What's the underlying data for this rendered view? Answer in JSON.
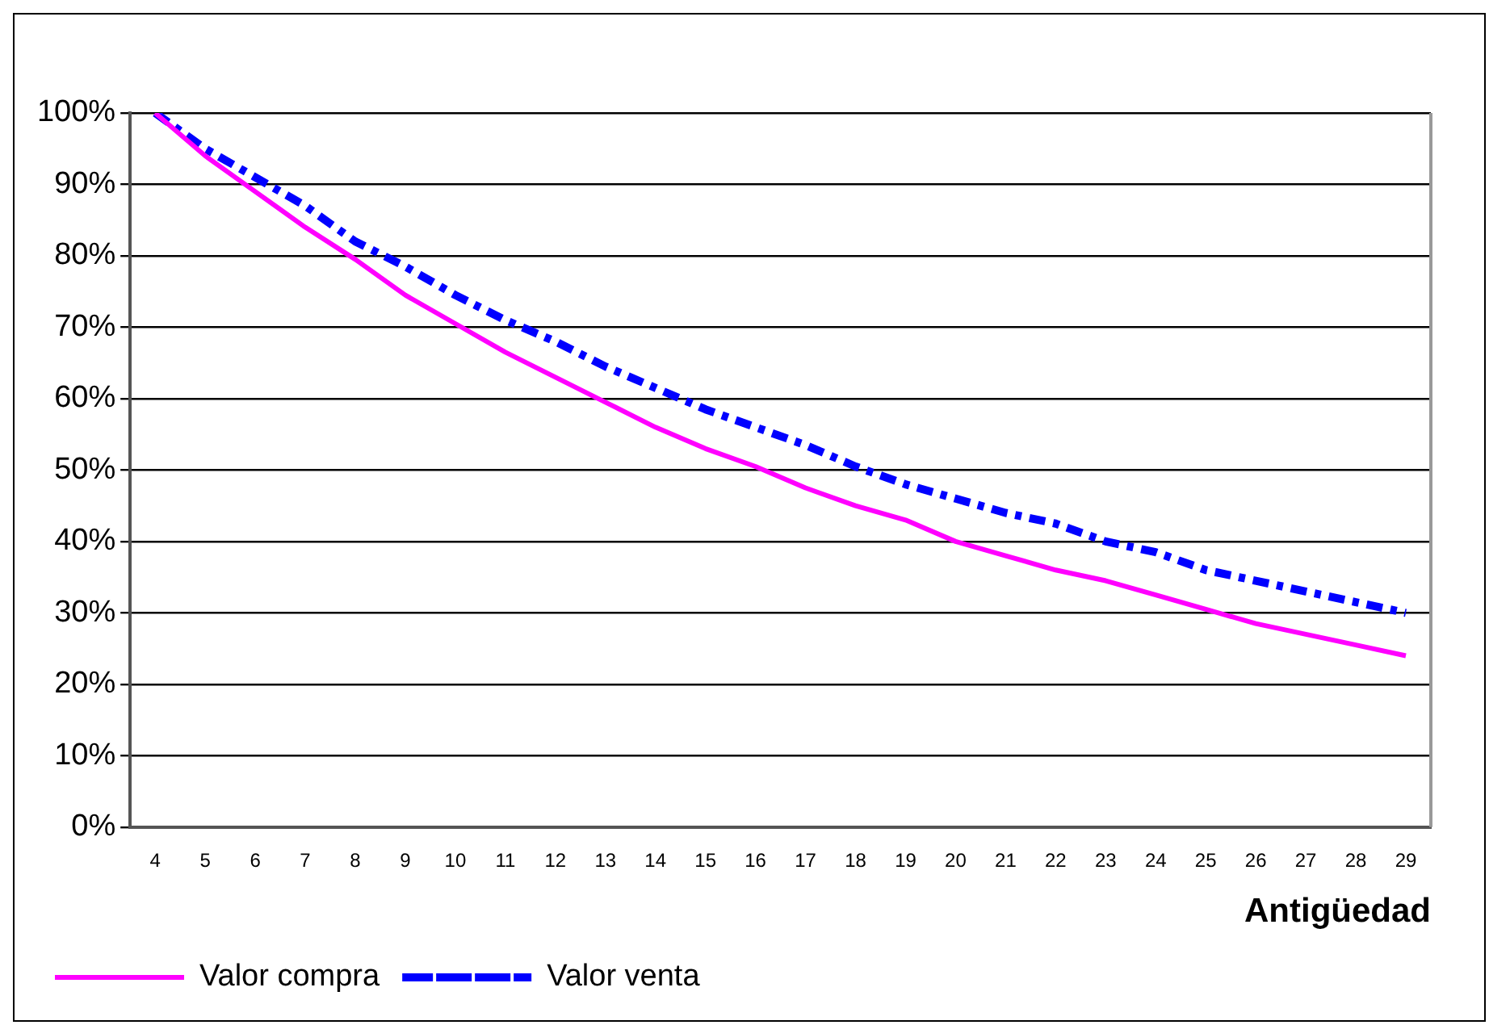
{
  "chart_data": {
    "type": "line",
    "xlabel": "Antigüedad",
    "categories": [
      "4",
      "5",
      "6",
      "7",
      "8",
      "9",
      "10",
      "11",
      "12",
      "13",
      "14",
      "15",
      "16",
      "17",
      "18",
      "19",
      "20",
      "21",
      "22",
      "23",
      "24",
      "25",
      "26",
      "27",
      "28",
      "29"
    ],
    "series": [
      {
        "name": "Valor compra",
        "color": "#ff00ff",
        "line_style": "solid",
        "values": [
          100,
          94,
          89,
          84,
          79.5,
          74.5,
          70.5,
          66.5,
          63,
          59.5,
          56,
          53,
          50.5,
          47.5,
          45,
          43,
          40,
          38,
          36,
          34.5,
          32.5,
          30.5,
          28.5,
          27,
          25.5,
          24
        ]
      },
      {
        "name": "Valor venta",
        "color": "#0000ff",
        "line_style": "dashed",
        "values": [
          100,
          95,
          91,
          87,
          82,
          78.5,
          74.5,
          71,
          68,
          64.5,
          61.5,
          58.5,
          56,
          53.5,
          50.5,
          48,
          46,
          44,
          42.5,
          40,
          38.5,
          36,
          34.5,
          33,
          31.5,
          30
        ]
      }
    ],
    "ylim": [
      0,
      100
    ],
    "yticks": [
      {
        "value": 0,
        "label": "0%"
      },
      {
        "value": 10,
        "label": "10%"
      },
      {
        "value": 20,
        "label": "20%"
      },
      {
        "value": 30,
        "label": "30%"
      },
      {
        "value": 40,
        "label": "40%"
      },
      {
        "value": 50,
        "label": "50%"
      },
      {
        "value": 60,
        "label": "60%"
      },
      {
        "value": 70,
        "label": "70%"
      },
      {
        "value": 80,
        "label": "80%"
      },
      {
        "value": 90,
        "label": "90%"
      },
      {
        "value": 100,
        "label": "100%"
      }
    ],
    "grid": "y",
    "legend": "bottom left",
    "marker": "none"
  }
}
